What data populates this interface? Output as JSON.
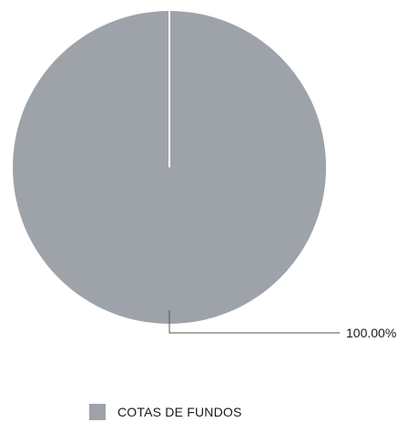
{
  "chart_data": {
    "type": "pie",
    "series": [
      {
        "name": "COTAS DE FUNDOS",
        "value": 100.0,
        "label": "100.00%",
        "color": "#9da3a8"
      }
    ],
    "legend_position": "bottom",
    "start_angle": "top (12 o'clock)"
  }
}
